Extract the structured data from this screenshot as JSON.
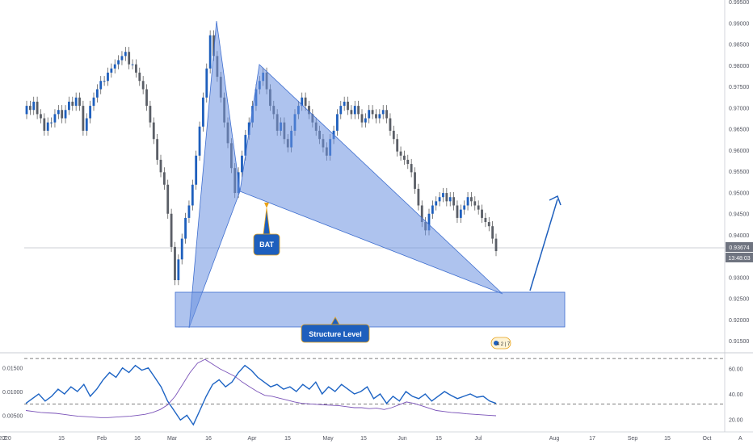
{
  "chart_data": [
    {
      "type": "candlestick",
      "y_ticks": [
        "0.99500",
        "0.99000",
        "0.98500",
        "0.98000",
        "0.97500",
        "0.97000",
        "0.96500",
        "0.96000",
        "0.95500",
        "0.95000",
        "0.94500",
        "0.94000",
        "0.93500",
        "0.93000",
        "0.92500",
        "0.92000",
        "0.91500"
      ],
      "ylim": [
        0.9125,
        0.9975
      ],
      "x_ticks": [
        "2020",
        "15",
        "Feb",
        "16",
        "Mar",
        "16",
        "Apr",
        "15",
        "May",
        "15",
        "Jun",
        "15",
        "Jul",
        "Aug",
        "17",
        "Sep",
        "15",
        "Oct"
      ],
      "last_price": "0.93674",
      "countdown": "13:48:03",
      "grid": false,
      "series": {
        "open": [
          0.97,
          0.972,
          0.971,
          0.973,
          0.97,
          0.969,
          0.966,
          0.968,
          0.968,
          0.97,
          0.971,
          0.969,
          0.971,
          0.973,
          0.972,
          0.974,
          0.972,
          0.966,
          0.969,
          0.972,
          0.974,
          0.976,
          0.978,
          0.978,
          0.98,
          0.981,
          0.982,
          0.983,
          0.984,
          0.985,
          0.982,
          0.982,
          0.98,
          0.978,
          0.976,
          0.972,
          0.968,
          0.964,
          0.959,
          0.956,
          0.953,
          0.946,
          0.938,
          0.93,
          0.935,
          0.94,
          0.945,
          0.948,
          0.953,
          0.96,
          0.967,
          0.974,
          0.981,
          0.989,
          0.984,
          0.979,
          0.974,
          0.968,
          0.963,
          0.957,
          0.951,
          0.956,
          0.96,
          0.965,
          0.968,
          0.972,
          0.976,
          0.978,
          0.98,
          0.976,
          0.972,
          0.97,
          0.966,
          0.968,
          0.964,
          0.962,
          0.966,
          0.97,
          0.972,
          0.974,
          0.972,
          0.97,
          0.968,
          0.966,
          0.964,
          0.962,
          0.96,
          0.964,
          0.966,
          0.97,
          0.972,
          0.973,
          0.971,
          0.97,
          0.972,
          0.97,
          0.968,
          0.969,
          0.971,
          0.97,
          0.969,
          0.97,
          0.971,
          0.969,
          0.966,
          0.964,
          0.961,
          0.96,
          0.959,
          0.958,
          0.956,
          0.952,
          0.948,
          0.944,
          0.942,
          0.946,
          0.948,
          0.949,
          0.95,
          0.951,
          0.949,
          0.95,
          0.948,
          0.945,
          0.947,
          0.948,
          0.95,
          0.949,
          0.948,
          0.947,
          0.945,
          0.944,
          0.943,
          0.94
        ],
        "close": [
          0.972,
          0.971,
          0.973,
          0.97,
          0.969,
          0.966,
          0.968,
          0.968,
          0.97,
          0.971,
          0.969,
          0.971,
          0.973,
          0.972,
          0.974,
          0.972,
          0.966,
          0.969,
          0.972,
          0.974,
          0.976,
          0.978,
          0.978,
          0.98,
          0.981,
          0.982,
          0.983,
          0.984,
          0.985,
          0.982,
          0.982,
          0.98,
          0.978,
          0.976,
          0.972,
          0.968,
          0.964,
          0.959,
          0.956,
          0.953,
          0.946,
          0.938,
          0.93,
          0.935,
          0.94,
          0.945,
          0.948,
          0.953,
          0.96,
          0.967,
          0.974,
          0.981,
          0.989,
          0.984,
          0.979,
          0.974,
          0.968,
          0.963,
          0.957,
          0.951,
          0.956,
          0.96,
          0.965,
          0.968,
          0.972,
          0.976,
          0.978,
          0.98,
          0.976,
          0.972,
          0.97,
          0.966,
          0.968,
          0.964,
          0.962,
          0.966,
          0.97,
          0.972,
          0.974,
          0.972,
          0.97,
          0.968,
          0.966,
          0.964,
          0.962,
          0.96,
          0.964,
          0.966,
          0.97,
          0.972,
          0.973,
          0.971,
          0.97,
          0.972,
          0.97,
          0.968,
          0.969,
          0.971,
          0.97,
          0.969,
          0.97,
          0.971,
          0.969,
          0.966,
          0.964,
          0.961,
          0.96,
          0.959,
          0.958,
          0.956,
          0.952,
          0.948,
          0.944,
          0.942,
          0.946,
          0.948,
          0.949,
          0.95,
          0.951,
          0.949,
          0.95,
          0.948,
          0.945,
          0.947,
          0.948,
          0.95,
          0.949,
          0.948,
          0.947,
          0.945,
          0.944,
          0.943,
          0.94,
          0.937
        ]
      }
    },
    {
      "type": "line",
      "y_ticks_left": [
        "0.01500",
        "0.01000",
        "0.00500"
      ],
      "y_ticks_right": [
        "60.00",
        "40.00",
        "20.00"
      ],
      "ylim_left": [
        0.002,
        0.0175
      ],
      "ylim_right": [
        12,
        70
      ],
      "levels_right": [
        68,
        32
      ],
      "series": [
        {
          "values": [
            0.0075,
            0.0085,
            0.0095,
            0.008,
            0.009,
            0.0105,
            0.0095,
            0.011,
            0.01,
            0.0115,
            0.009,
            0.0105,
            0.0125,
            0.014,
            0.013,
            0.015,
            0.014,
            0.0155,
            0.0145,
            0.015,
            0.013,
            0.011,
            0.008,
            0.006,
            0.004,
            0.005,
            0.003,
            0.006,
            0.009,
            0.0115,
            0.0125,
            0.011,
            0.012,
            0.014,
            0.0155,
            0.0145,
            0.013,
            0.012,
            0.011,
            0.0115,
            0.0105,
            0.011,
            0.01,
            0.0115,
            0.0105,
            0.012,
            0.0095,
            0.011,
            0.01,
            0.0115,
            0.0105,
            0.0095,
            0.01,
            0.011,
            0.0085,
            0.0095,
            0.0075,
            0.009,
            0.008,
            0.01,
            0.009,
            0.0085,
            0.0095,
            0.008,
            0.009,
            0.01,
            0.0092,
            0.0085,
            0.009,
            0.0095,
            0.0088,
            0.009,
            0.008,
            0.0075
          ]
        },
        {
          "values": [
            0.006,
            0.0058,
            0.0056,
            0.0055,
            0.0054,
            0.0052,
            0.005,
            0.0048,
            0.0047,
            0.0046,
            0.0045,
            0.0045,
            0.0046,
            0.0047,
            0.0048,
            0.005,
            0.0052,
            0.0056,
            0.0062,
            0.0072,
            0.009,
            0.0115,
            0.014,
            0.016,
            0.0168,
            0.0158,
            0.0148,
            0.014,
            0.0132,
            0.012,
            0.011,
            0.01,
            0.0092,
            0.009,
            0.0086,
            0.0082,
            0.0078,
            0.0075,
            0.0074,
            0.0073,
            0.0072,
            0.0071,
            0.007,
            0.0068,
            0.0066,
            0.0066,
            0.0064,
            0.0065,
            0.0062,
            0.0066,
            0.0072,
            0.0078,
            0.0075,
            0.007,
            0.0065,
            0.006,
            0.0058,
            0.0056,
            0.0055,
            0.0053,
            0.0052,
            0.0051,
            0.005,
            0.0049
          ]
        }
      ]
    }
  ],
  "drawings": {
    "bat_label": "BAT",
    "structure_label": "Structure Level",
    "badge_text": "4 2 | 7"
  },
  "axis_misc": {
    "z_label": "Z",
    "a_label": "A"
  },
  "colors": {
    "candle": "#1e5fbd",
    "wick": "#4a4a4a",
    "pattern_fill": "#6b92e0",
    "pattern_stroke": "#3f6fcf",
    "callout": "#1e5fbd",
    "arrow": "#1e5fbd",
    "indicator_primary": "#1c63c4",
    "indicator_secondary": "#7a52b8",
    "price_tag": "#6f7480"
  }
}
